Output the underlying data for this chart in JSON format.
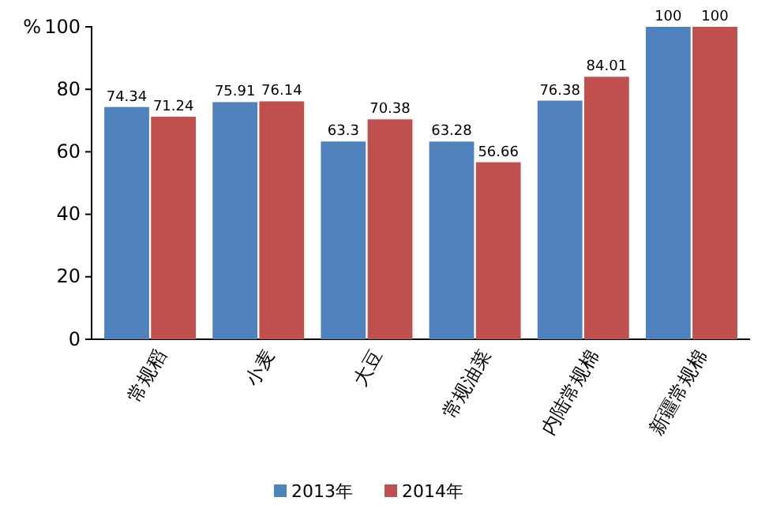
{
  "chart_data": {
    "type": "bar",
    "ylabel": "%",
    "categories": [
      "常规稻",
      "小麦",
      "大豆",
      "常规油菜",
      "内陆常规棉",
      "新疆常规棉"
    ],
    "series": [
      {
        "name": "2013年",
        "color": "#4f81bd",
        "values": [
          74.34,
          75.91,
          63.3,
          63.28,
          76.38,
          100
        ]
      },
      {
        "name": "2014年",
        "color": "#c0504d",
        "values": [
          71.24,
          76.14,
          70.38,
          56.66,
          84.01,
          100
        ]
      }
    ],
    "ylim": [
      0,
      100
    ],
    "yticks": [
      0,
      20,
      40,
      60,
      80,
      100
    ],
    "grid": false,
    "legend": "bottom",
    "data_labels": true
  }
}
